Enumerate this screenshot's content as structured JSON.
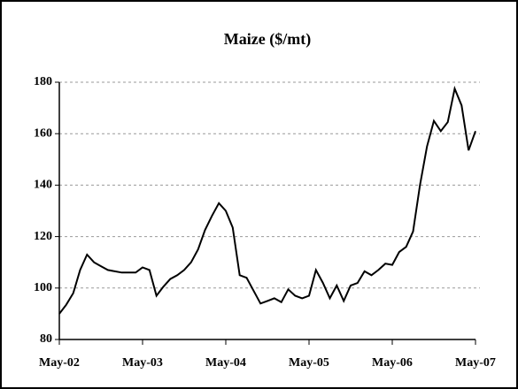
{
  "chart_data": {
    "type": "line",
    "title": "Maize ($/mt)",
    "categories": [
      "May-02",
      null,
      null,
      null,
      null,
      null,
      null,
      null,
      null,
      null,
      null,
      null,
      "May-03",
      null,
      null,
      null,
      null,
      null,
      null,
      null,
      null,
      null,
      null,
      null,
      "May-04",
      null,
      null,
      null,
      null,
      null,
      null,
      null,
      null,
      null,
      null,
      null,
      "May-05",
      null,
      null,
      null,
      null,
      null,
      null,
      null,
      null,
      null,
      null,
      null,
      "May-06",
      null,
      null,
      null,
      null,
      null,
      null,
      null,
      null,
      null,
      null,
      null,
      "May-07"
    ],
    "series": [
      {
        "name": "Maize",
        "color": "#000000",
        "values": [
          90,
          93.5,
          98,
          107,
          113,
          110,
          108.5,
          107,
          106.5,
          106,
          106,
          106,
          108,
          107,
          97,
          100.5,
          103.5,
          105,
          107,
          110,
          115,
          122.5,
          128,
          133,
          130,
          123.5,
          105,
          104,
          99,
          94,
          95,
          96,
          94.5,
          99.5,
          97,
          96,
          97,
          107,
          102,
          96,
          101,
          95,
          101,
          102,
          106.5,
          105,
          107,
          109.5,
          109,
          114,
          116,
          122,
          140,
          155,
          165,
          161,
          164.5,
          177.5,
          171,
          153.5,
          161
        ]
      }
    ],
    "ylim": [
      80,
      180
    ],
    "yticks": [
      80,
      100,
      120,
      140,
      160,
      180
    ],
    "grid": true
  }
}
